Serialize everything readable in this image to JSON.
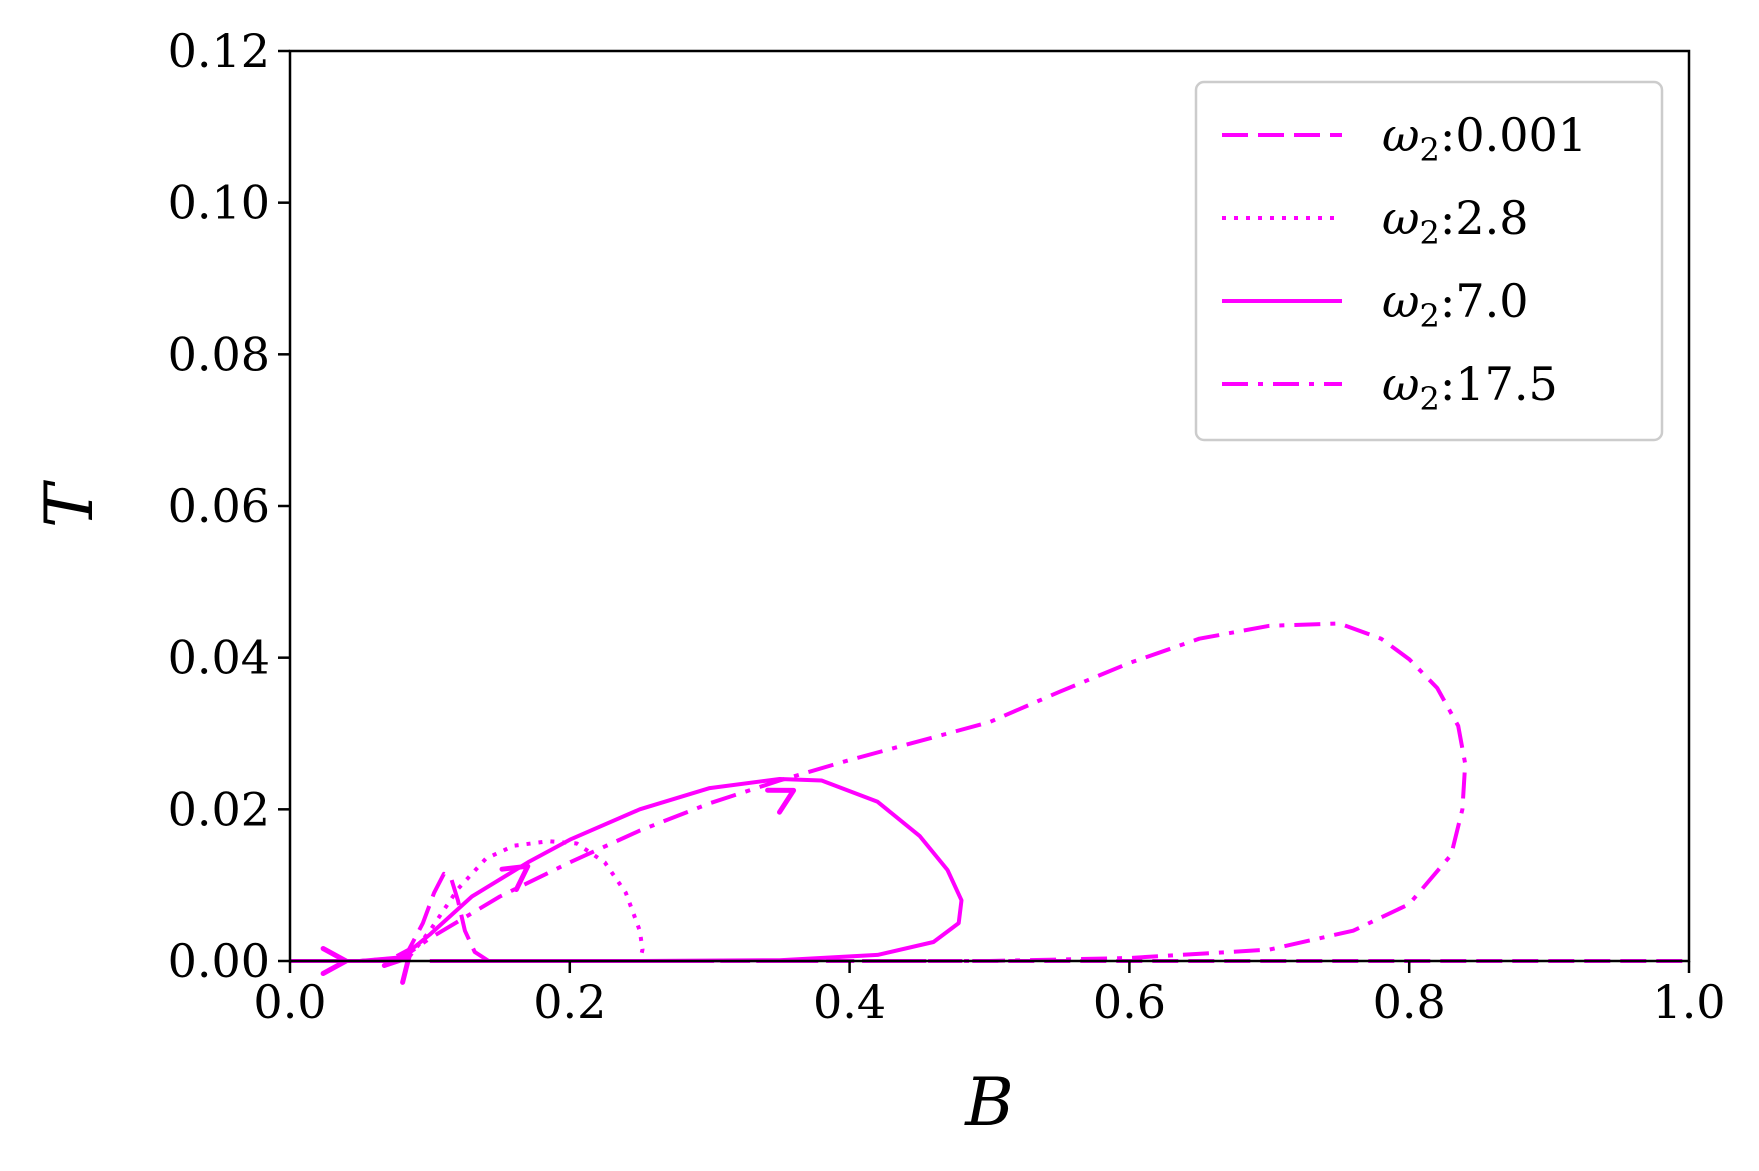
{
  "chart_data": {
    "type": "line",
    "xlabel": "B",
    "ylabel": "T",
    "xlim": [
      0.0,
      1.0
    ],
    "ylim": [
      0.0,
      0.12
    ],
    "xticks": [
      "0.0",
      "0.2",
      "0.4",
      "0.6",
      "0.8",
      "1.0"
    ],
    "yticks": [
      "0.00",
      "0.02",
      "0.04",
      "0.06",
      "0.08",
      "0.10",
      "0.12"
    ],
    "grid": false,
    "legend_position": "top-right",
    "line_color": "#ff00ff",
    "series": [
      {
        "name": "ω₂:0.001",
        "legend_symbol": "ω",
        "legend_sub": "2",
        "legend_value": ":0.001",
        "style": "dashed",
        "points": [
          [
            0.0,
            0.0
          ],
          [
            0.03,
            0.0
          ],
          [
            0.05,
            0.0
          ],
          [
            0.07,
            0.0
          ],
          [
            0.085,
            0.0015
          ],
          [
            0.095,
            0.005
          ],
          [
            0.103,
            0.009
          ],
          [
            0.11,
            0.0115
          ],
          [
            0.115,
            0.011
          ],
          [
            0.12,
            0.008
          ],
          [
            0.125,
            0.004
          ],
          [
            0.132,
            0.0012
          ],
          [
            0.142,
            0.0
          ],
          [
            0.16,
            0.0
          ],
          [
            0.25,
            0.0
          ],
          [
            0.4,
            0.0
          ],
          [
            0.6,
            0.0
          ],
          [
            0.8,
            0.0
          ],
          [
            1.0,
            0.0
          ]
        ]
      },
      {
        "name": "ω₂:2.8",
        "legend_symbol": "ω",
        "legend_sub": "2",
        "legend_value": ":2.8",
        "style": "dotted",
        "points": [
          [
            0.0,
            0.0
          ],
          [
            0.05,
            0.0
          ],
          [
            0.085,
            0.0005
          ],
          [
            0.1,
            0.004
          ],
          [
            0.12,
            0.0095
          ],
          [
            0.14,
            0.0135
          ],
          [
            0.16,
            0.0152
          ],
          [
            0.185,
            0.0158
          ],
          [
            0.205,
            0.0155
          ],
          [
            0.225,
            0.013
          ],
          [
            0.24,
            0.009
          ],
          [
            0.25,
            0.004
          ],
          [
            0.252,
            0.0015
          ],
          [
            0.25,
            0.0
          ],
          [
            0.22,
            0.0
          ],
          [
            0.17,
            0.0
          ],
          [
            0.12,
            0.0
          ]
        ]
      },
      {
        "name": "ω₂:7.0",
        "legend_symbol": "ω",
        "legend_sub": "2",
        "legend_value": ":7.0",
        "style": "solid",
        "points": [
          [
            0.0,
            0.0
          ],
          [
            0.05,
            0.0
          ],
          [
            0.08,
            0.0005
          ],
          [
            0.1,
            0.0035
          ],
          [
            0.13,
            0.0085
          ],
          [
            0.17,
            0.013
          ],
          [
            0.2,
            0.016
          ],
          [
            0.25,
            0.02
          ],
          [
            0.3,
            0.0228
          ],
          [
            0.35,
            0.024
          ],
          [
            0.38,
            0.0238
          ],
          [
            0.42,
            0.021
          ],
          [
            0.45,
            0.0165
          ],
          [
            0.47,
            0.012
          ],
          [
            0.48,
            0.008
          ],
          [
            0.478,
            0.005
          ],
          [
            0.46,
            0.0025
          ],
          [
            0.42,
            0.0008
          ],
          [
            0.35,
            0.0001
          ],
          [
            0.25,
            0.0
          ],
          [
            0.15,
            0.0
          ],
          [
            0.1,
            0.0
          ]
        ]
      },
      {
        "name": "ω₂:17.5",
        "legend_symbol": "ω",
        "legend_sub": "2",
        "legend_value": ":17.5",
        "style": "dashdot",
        "points": [
          [
            0.0,
            0.0
          ],
          [
            0.05,
            0.0
          ],
          [
            0.08,
            0.0004
          ],
          [
            0.1,
            0.003
          ],
          [
            0.15,
            0.0085
          ],
          [
            0.2,
            0.013
          ],
          [
            0.25,
            0.0172
          ],
          [
            0.3,
            0.0208
          ],
          [
            0.35,
            0.0238
          ],
          [
            0.4,
            0.0265
          ],
          [
            0.45,
            0.029
          ],
          [
            0.5,
            0.0315
          ],
          [
            0.55,
            0.0355
          ],
          [
            0.6,
            0.0393
          ],
          [
            0.65,
            0.0425
          ],
          [
            0.7,
            0.0442
          ],
          [
            0.75,
            0.0445
          ],
          [
            0.78,
            0.0425
          ],
          [
            0.8,
            0.0398
          ],
          [
            0.82,
            0.036
          ],
          [
            0.835,
            0.031
          ],
          [
            0.84,
            0.026
          ],
          [
            0.838,
            0.02
          ],
          [
            0.83,
            0.014
          ],
          [
            0.8,
            0.0075
          ],
          [
            0.76,
            0.004
          ],
          [
            0.7,
            0.0015
          ],
          [
            0.6,
            0.0004
          ],
          [
            0.5,
            0.0
          ],
          [
            0.35,
            0.0
          ],
          [
            0.2,
            0.0
          ],
          [
            0.1,
            0.0
          ]
        ]
      }
    ],
    "arrows": [
      {
        "series": 0,
        "at": [
          0.04,
          0.0
        ],
        "toward": [
          0.06,
          0.0
        ]
      },
      {
        "series": 1,
        "at": [
          0.17,
          0.0125
        ],
        "toward": [
          0.18,
          0.0138
        ]
      },
      {
        "series": 2,
        "at": [
          0.085,
          0.0005
        ],
        "toward": [
          0.095,
          0.0025
        ]
      },
      {
        "series": 3,
        "at": [
          0.36,
          0.0225
        ],
        "toward": [
          0.38,
          0.0245
        ]
      }
    ]
  }
}
